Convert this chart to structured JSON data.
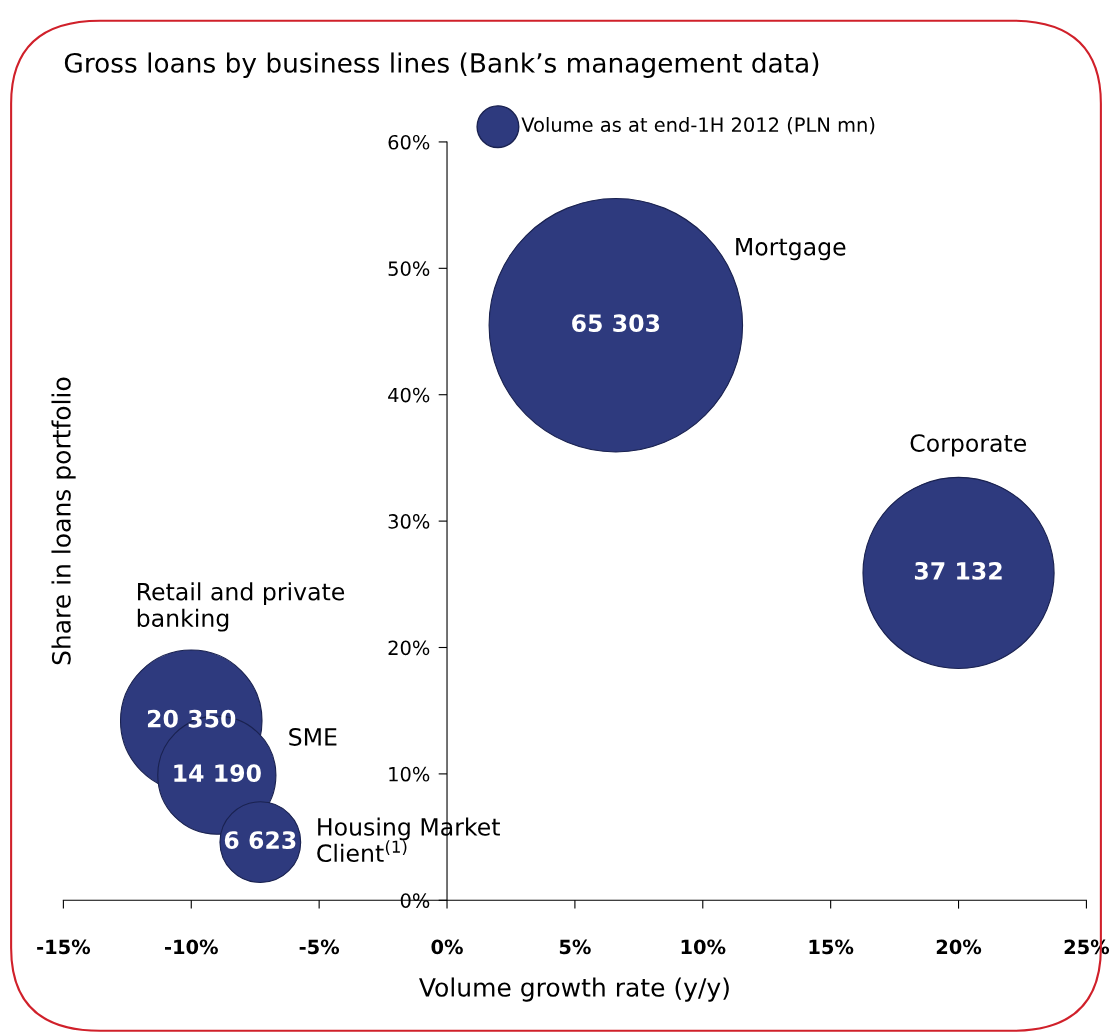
{
  "chart_data": {
    "type": "bubble",
    "title": "Gross loans by business lines (Bank’s management data)",
    "xlabel": "Volume growth rate (y/y)",
    "ylabel": "Share in loans portfolio",
    "x": [
      6.6,
      20.0,
      -10.0,
      -9.0,
      -7.3
    ],
    "series": [
      {
        "name": "Volume as at end-1H 2012 (PLN mn)",
        "color": "#2e3a7e",
        "values": [
          45.5,
          25.9,
          14.2,
          9.9,
          4.6
        ],
        "sizes": [
          65303,
          37132,
          20350,
          14190,
          6623
        ],
        "value_labels": [
          "65 303",
          "37 132",
          "20 350",
          "14 190",
          "6 623"
        ]
      }
    ],
    "annotations": [
      "Mortgage",
      "Corporate",
      "Retail and private\nbanking",
      "SME",
      "Housing Market\nClient$^{(1)}$"
    ],
    "xlim": [
      -15,
      25
    ],
    "ylim": [
      0,
      60
    ],
    "xticks": [
      {
        "value": -15,
        "label": "-15%"
      },
      {
        "value": -10,
        "label": "-10%"
      },
      {
        "value": -5,
        "label": "-5%"
      },
      {
        "value": 0,
        "label": "0%"
      },
      {
        "value": 5,
        "label": "5%"
      },
      {
        "value": 10,
        "label": "10%"
      },
      {
        "value": 15,
        "label": "15%"
      },
      {
        "value": 20,
        "label": "20%"
      },
      {
        "value": 25,
        "label": "25%"
      }
    ],
    "yticks": [
      {
        "value": 0,
        "label": "0%"
      },
      {
        "value": 10,
        "label": "10%"
      },
      {
        "value": 20,
        "label": "20%"
      },
      {
        "value": 30,
        "label": "30%"
      },
      {
        "value": 40,
        "label": "40%"
      },
      {
        "value": 50,
        "label": "50%"
      },
      {
        "value": 60,
        "label": "60%"
      }
    ],
    "grid": false,
    "legend": "top",
    "marker": "circle"
  }
}
